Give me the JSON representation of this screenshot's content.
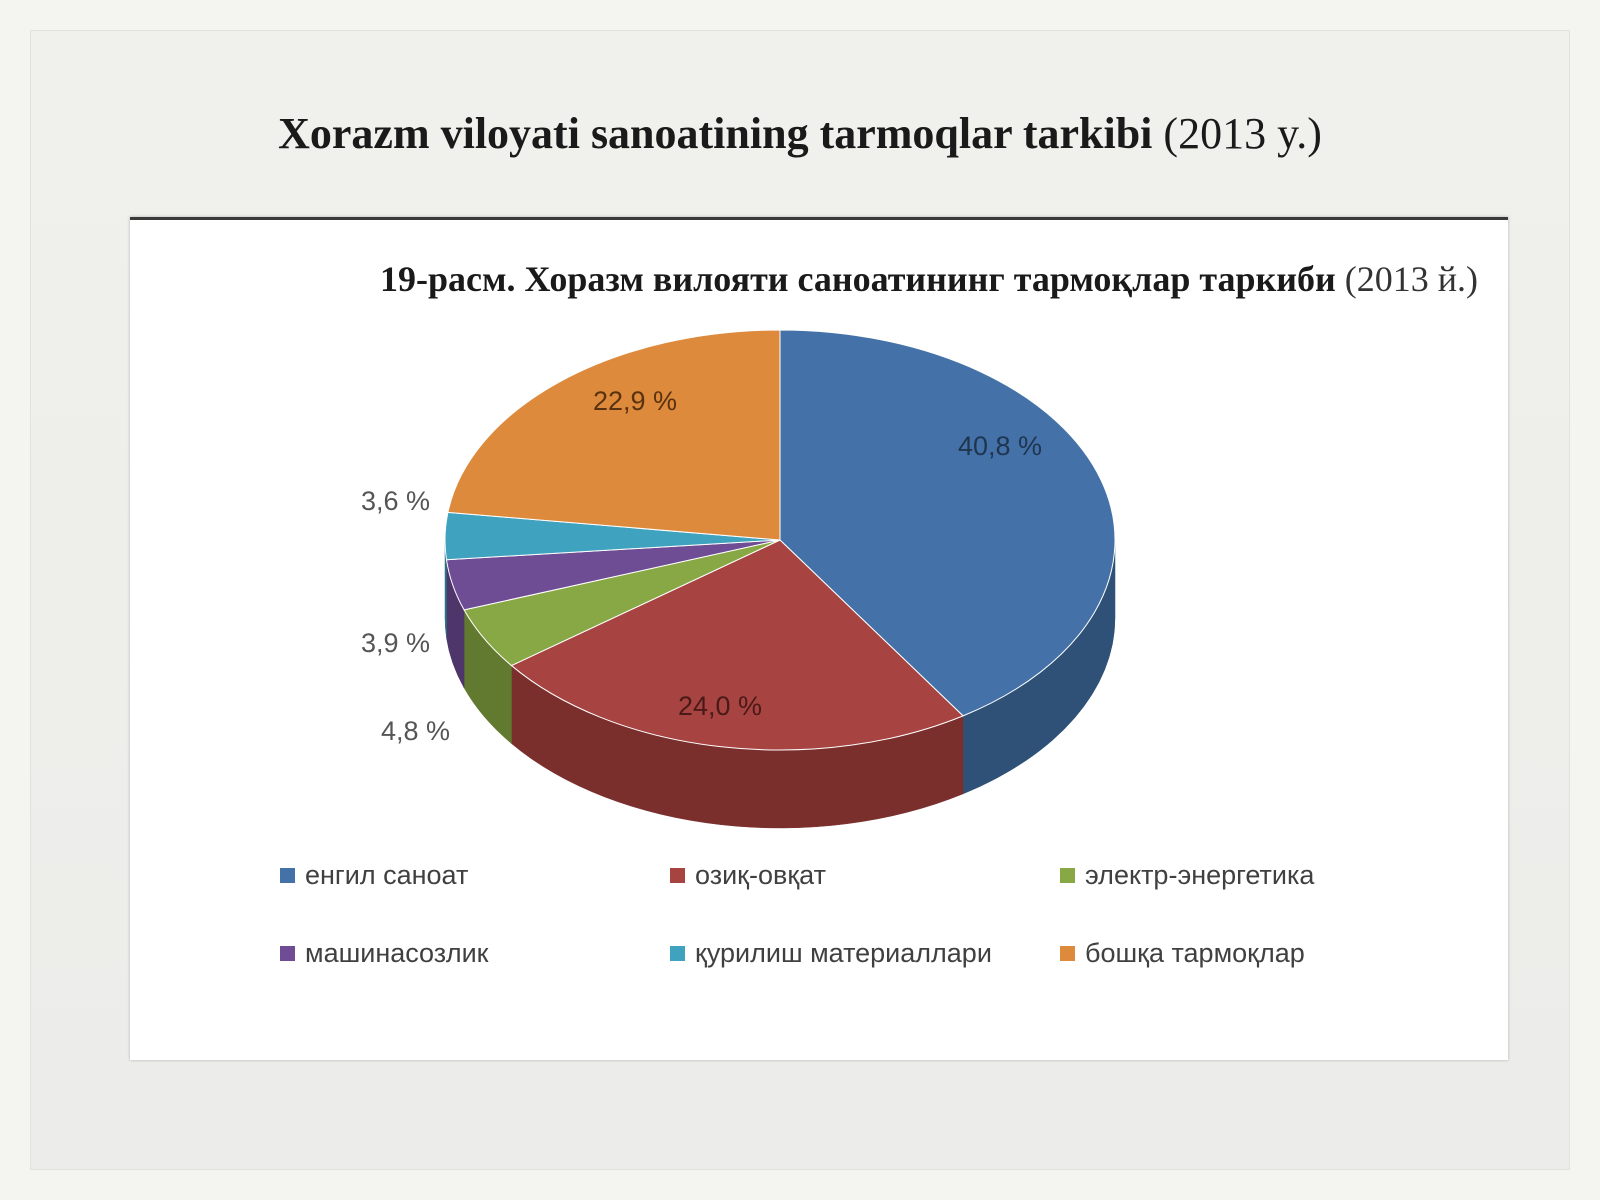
{
  "slide": {
    "title_main": "Xorazm viloyati sanoatining tarmoqlar tarkibi",
    "title_year": "(2013 y.)"
  },
  "chart_data": {
    "type": "pie",
    "title_main": "19-расм. Хоразм вилояти саноатининг тармоқлар таркиби",
    "title_year": "(2013 й.)",
    "slices": [
      {
        "name": "енгил саноат",
        "value": 40.8,
        "label": "40,8 %",
        "color": "#4472a8",
        "side_color": "#2f5177"
      },
      {
        "name": "озиқ-овқат",
        "value": 24.0,
        "label": "24,0 %",
        "color": "#a74442",
        "side_color": "#7a2f2d"
      },
      {
        "name": "электр-энергетика",
        "value": 4.8,
        "label": "4,8 %",
        "color": "#88a845",
        "side_color": "#627a30"
      },
      {
        "name": "машинасозлик",
        "value": 3.9,
        "label": "3,9 %",
        "color": "#6f4d94",
        "side_color": "#4e356a"
      },
      {
        "name": "қурилиш материаллари",
        "value": 3.6,
        "label": "3,6 %",
        "color": "#3fa2be",
        "side_color": "#2b7487"
      },
      {
        "name": "бошқа тармоқлар",
        "value": 22.9,
        "label": "22,9 %",
        "color": "#dd8a3c",
        "side_color": "#a8672b"
      }
    ],
    "legend_position": "bottom"
  }
}
